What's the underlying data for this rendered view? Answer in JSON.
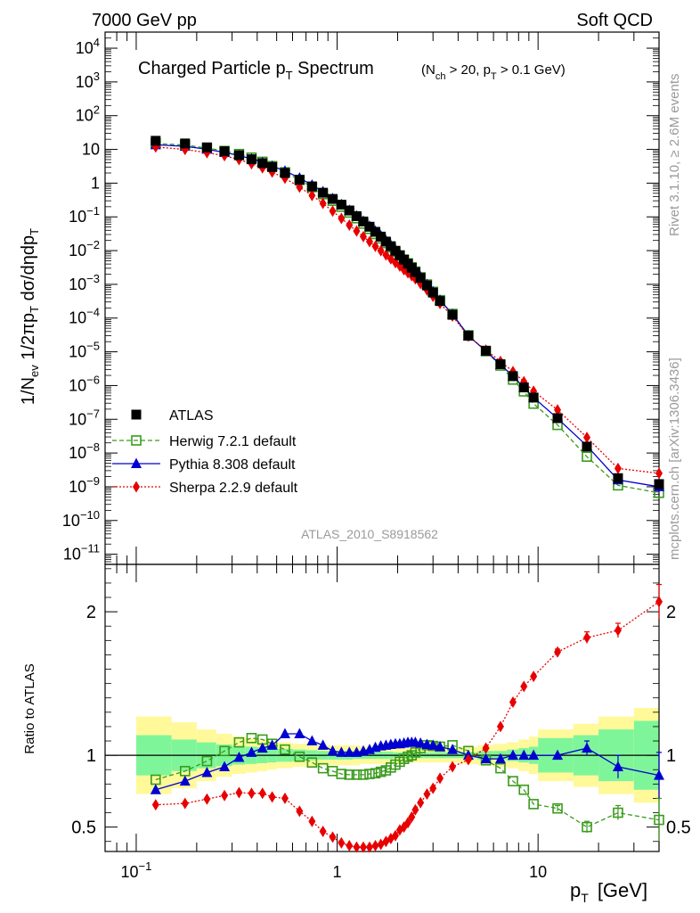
{
  "header": {
    "left": "7000 GeV pp",
    "right": "Soft QCD"
  },
  "side_labels": {
    "top": "Rivet 3.1.10, ≥ 2.6M events",
    "bottom": "mcplots.cern.ch [arXiv:1306.3436]"
  },
  "watermark": "ATLAS_2010_S8918562",
  "colors": {
    "atlas": "#000000",
    "herwig": "#3a9b1c",
    "pythia": "#0000d0",
    "sherpa": "#e80000",
    "band_inner": "#7ff59a",
    "band_outer": "#fff99a"
  },
  "chart_data": [
    {
      "type": "scatter",
      "title_main": "Charged Particle p",
      "title_sub": "T",
      "title_tail": " Spectrum",
      "title_cond": "(N",
      "title_cond_sub1": "ch",
      "title_cond_mid": " > 20, p",
      "title_cond_sub2": "T",
      "title_cond_tail": " > 0.1 GeV)",
      "ylabel": "1/N_ev 1/2πp_T dσ/dηdp_T",
      "x_scale": "log",
      "y_scale": "log",
      "xlim": [
        0.07,
        40
      ],
      "ylim": [
        5e-12,
        30000
      ],
      "y_ticks": [
        {
          "v": 10000.0,
          "b": "10",
          "e": "4"
        },
        {
          "v": 1000.0,
          "b": "10",
          "e": "3"
        },
        {
          "v": 100.0,
          "b": "10",
          "e": "2"
        },
        {
          "v": 10,
          "b": "10",
          "e": ""
        },
        {
          "v": 1,
          "b": "1",
          "e": ""
        },
        {
          "v": 0.1,
          "b": "10",
          "e": "−1"
        },
        {
          "v": 0.01,
          "b": "10",
          "e": "−2"
        },
        {
          "v": 0.001,
          "b": "10",
          "e": "−3"
        },
        {
          "v": 0.0001,
          "b": "10",
          "e": "−4"
        },
        {
          "v": 1e-05,
          "b": "10",
          "e": "−5"
        },
        {
          "v": 1e-06,
          "b": "10",
          "e": "−6"
        },
        {
          "v": 1e-07,
          "b": "10",
          "e": "−7"
        },
        {
          "v": 1e-08,
          "b": "10",
          "e": "−8"
        },
        {
          "v": 1e-09,
          "b": "10",
          "e": "−9"
        },
        {
          "v": 1e-10,
          "b": "10",
          "e": "−10"
        },
        {
          "v": 1e-11,
          "b": "10",
          "e": "−11"
        }
      ],
      "x": [
        0.125,
        0.175,
        0.225,
        0.275,
        0.325,
        0.375,
        0.425,
        0.475,
        0.55,
        0.65,
        0.75,
        0.85,
        0.95,
        1.05,
        1.15,
        1.25,
        1.35,
        1.45,
        1.55,
        1.65,
        1.75,
        1.85,
        1.95,
        2.05,
        2.15,
        2.25,
        2.35,
        2.45,
        2.6,
        2.8,
        3.0,
        3.25,
        3.75,
        4.5,
        5.5,
        6.5,
        7.5,
        8.5,
        9.5,
        12.5,
        17.5,
        25,
        40
      ],
      "series": [
        {
          "name": "ATLAS",
          "values": [
            18,
            15,
            11.5,
            8.8,
            6.7,
            5.1,
            3.9,
            3.0,
            2.0,
            1.25,
            0.8,
            0.52,
            0.34,
            0.23,
            0.155,
            0.105,
            0.073,
            0.051,
            0.036,
            0.026,
            0.0185,
            0.0135,
            0.0099,
            0.0073,
            0.0054,
            0.0041,
            0.0031,
            0.0023,
            0.00155,
            0.00093,
            0.00057,
            0.00032,
            0.000125,
            3e-05,
            1.08e-05,
            4.3e-06,
            1.9e-06,
            8.8e-07,
            4.4e-07,
            1.08e-07,
            1.55e-08,
            1.8e-09,
            1.2e-09
          ]
        },
        {
          "name": "Herwig 7.2.1 default",
          "values": [
            15.0,
            13.4,
            11.0,
            9.0,
            7.3,
            5.7,
            4.3,
            3.2,
            2.1,
            1.25,
            0.76,
            0.47,
            0.3,
            0.2,
            0.134,
            0.091,
            0.063,
            0.044,
            0.031,
            0.023,
            0.0166,
            0.0124,
            0.0093,
            0.0071,
            0.0054,
            0.0042,
            0.0032,
            0.0024,
            0.00162,
            0.00099,
            0.0006,
            0.00034,
            0.000133,
            3.1e-05,
            1.04e-05,
            3.9e-06,
            1.5e-06,
            6.7e-07,
            2.9e-07,
            6.8e-08,
            7.8e-09,
            1.1e-09,
            6.6e-10
          ]
        },
        {
          "name": "Pythia 8.308 default",
          "values": [
            13.7,
            12.3,
            10.1,
            8.1,
            6.6,
            5.2,
            4.1,
            3.2,
            2.3,
            1.43,
            0.88,
            0.56,
            0.35,
            0.235,
            0.158,
            0.107,
            0.075,
            0.053,
            0.038,
            0.0277,
            0.0198,
            0.0145,
            0.0107,
            0.0079,
            0.0059,
            0.0045,
            0.0034,
            0.0025,
            0.00168,
            0.001,
            0.00061,
            0.00034,
            0.00013,
            3e-05,
            1.05e-05,
            4.2e-06,
            1.9e-06,
            8.8e-07,
            4.4e-07,
            1.06e-07,
            1.63e-08,
            1.6e-09,
            1e-09
          ]
        },
        {
          "name": "Sherpa 2.2.9 default",
          "values": [
            11.8,
            10.0,
            8.0,
            6.5,
            5.0,
            3.75,
            2.85,
            2.12,
            1.4,
            0.76,
            0.43,
            0.25,
            0.148,
            0.09,
            0.057,
            0.038,
            0.026,
            0.0185,
            0.0134,
            0.0099,
            0.0074,
            0.0057,
            0.0044,
            0.0035,
            0.0027,
            0.0022,
            0.0018,
            0.00145,
            0.00105,
            0.00068,
            0.00044,
            0.00027,
            0.000115,
            2.9e-05,
            1.13e-05,
            5.2e-06,
            2.6e-06,
            1.3e-06,
            6.8e-07,
            1.9e-07,
            2.9e-08,
            3.5e-09,
            2.5e-09
          ]
        }
      ],
      "legend": "center-left"
    },
    {
      "type": "scatter",
      "ylabel": "Ratio to ATLAS",
      "xlabel_main": "p",
      "xlabel_sub": "T",
      "xlabel_unit": "[GeV]",
      "x_scale": "log",
      "xlim": [
        0.07,
        40
      ],
      "ylim": [
        0.33,
        2.33
      ],
      "y_ticks": [
        "0.5",
        "1",
        "2"
      ],
      "x_ticks": [
        {
          "v": 0.1,
          "b": "10",
          "e": "−1"
        },
        {
          "v": 1,
          "b": "1",
          "e": ""
        },
        {
          "v": 10,
          "b": "10",
          "e": ""
        }
      ],
      "x": [
        0.125,
        0.175,
        0.225,
        0.275,
        0.325,
        0.375,
        0.425,
        0.475,
        0.55,
        0.65,
        0.75,
        0.85,
        0.95,
        1.05,
        1.15,
        1.25,
        1.35,
        1.45,
        1.55,
        1.65,
        1.75,
        1.85,
        1.95,
        2.05,
        2.15,
        2.25,
        2.35,
        2.45,
        2.6,
        2.8,
        3.0,
        3.25,
        3.75,
        4.5,
        5.5,
        6.5,
        7.5,
        8.5,
        9.5,
        12.5,
        17.5,
        25,
        40
      ],
      "bins": [
        [
          0.1,
          0.15
        ],
        [
          0.15,
          0.2
        ],
        [
          0.2,
          0.25
        ],
        [
          0.25,
          0.3
        ],
        [
          0.3,
          0.35
        ],
        [
          0.35,
          0.4
        ],
        [
          0.4,
          0.45
        ],
        [
          0.45,
          0.5
        ],
        [
          0.5,
          0.6
        ],
        [
          0.6,
          0.7
        ],
        [
          0.7,
          0.8
        ],
        [
          0.8,
          0.9
        ],
        [
          0.9,
          1.0
        ],
        [
          1.0,
          1.1
        ],
        [
          1.1,
          1.2
        ],
        [
          1.2,
          1.3
        ],
        [
          1.3,
          1.4
        ],
        [
          1.4,
          1.5
        ],
        [
          1.5,
          1.6
        ],
        [
          1.6,
          1.7
        ],
        [
          1.7,
          1.8
        ],
        [
          1.8,
          1.9
        ],
        [
          1.9,
          2.0
        ],
        [
          2.0,
          2.1
        ],
        [
          2.1,
          2.2
        ],
        [
          2.2,
          2.3
        ],
        [
          2.3,
          2.4
        ],
        [
          2.4,
          2.5
        ],
        [
          2.5,
          2.7
        ],
        [
          2.7,
          2.9
        ],
        [
          2.9,
          3.1
        ],
        [
          3.1,
          3.4
        ],
        [
          3.4,
          4.1
        ],
        [
          4.1,
          5
        ],
        [
          5,
          6
        ],
        [
          6,
          7
        ],
        [
          7,
          8
        ],
        [
          8,
          9
        ],
        [
          9,
          10
        ],
        [
          10,
          15
        ],
        [
          15,
          20
        ],
        [
          20,
          30
        ],
        [
          30,
          40
        ]
      ],
      "band_outer": [
        0.27,
        0.23,
        0.18,
        0.15,
        0.13,
        0.12,
        0.11,
        0.1,
        0.09,
        0.08,
        0.08,
        0.07,
        0.07,
        0.07,
        0.07,
        0.07,
        0.06,
        0.06,
        0.06,
        0.06,
        0.06,
        0.06,
        0.06,
        0.06,
        0.05,
        0.05,
        0.05,
        0.05,
        0.05,
        0.05,
        0.05,
        0.05,
        0.05,
        0.06,
        0.07,
        0.08,
        0.09,
        0.11,
        0.13,
        0.18,
        0.22,
        0.27,
        0.33
      ],
      "band_inner": [
        0.14,
        0.11,
        0.09,
        0.075,
        0.065,
        0.06,
        0.055,
        0.05,
        0.045,
        0.04,
        0.035,
        0.03,
        0.03,
        0.03,
        0.03,
        0.025,
        0.025,
        0.025,
        0.025,
        0.025,
        0.025,
        0.025,
        0.02,
        0.02,
        0.02,
        0.02,
        0.02,
        0.02,
        0.02,
        0.02,
        0.02,
        0.02,
        0.02,
        0.02,
        0.03,
        0.03,
        0.04,
        0.05,
        0.06,
        0.12,
        0.14,
        0.18,
        0.24
      ],
      "series": [
        {
          "name": "Herwig 7.2.1 default",
          "values": [
            0.83,
            0.89,
            0.96,
            1.03,
            1.09,
            1.12,
            1.11,
            1.08,
            1.04,
            0.99,
            0.95,
            0.91,
            0.89,
            0.87,
            0.865,
            0.865,
            0.865,
            0.87,
            0.875,
            0.885,
            0.895,
            0.915,
            0.935,
            0.955,
            0.975,
            0.99,
            1.0,
            1.02,
            1.05,
            1.07,
            1.065,
            1.06,
            1.07,
            1.03,
            0.965,
            0.91,
            0.82,
            0.76,
            0.66,
            0.63,
            0.5,
            0.6,
            0.55
          ],
          "errors": [
            0,
            0,
            0,
            0,
            0,
            0,
            0,
            0,
            0,
            0,
            0,
            0,
            0,
            0,
            0,
            0,
            0,
            0,
            0,
            0,
            0,
            0,
            0,
            0,
            0,
            0,
            0,
            0,
            0,
            0,
            0,
            0,
            0,
            0,
            0,
            0,
            0,
            0,
            0,
            0.02,
            0.04,
            0.05,
            0.15
          ]
        },
        {
          "name": "Pythia 8.308 default",
          "values": [
            0.76,
            0.82,
            0.88,
            0.92,
            0.985,
            1.02,
            1.05,
            1.07,
            1.15,
            1.15,
            1.1,
            1.07,
            1.03,
            1.02,
            1.02,
            1.02,
            1.03,
            1.04,
            1.055,
            1.065,
            1.07,
            1.075,
            1.08,
            1.08,
            1.085,
            1.09,
            1.09,
            1.09,
            1.085,
            1.075,
            1.07,
            1.06,
            1.04,
            1.0,
            0.975,
            0.975,
            1.0,
            1.0,
            1.0,
            1.0,
            1.05,
            0.92,
            0.86
          ],
          "errors": [
            0,
            0,
            0,
            0,
            0,
            0,
            0,
            0,
            0,
            0,
            0,
            0,
            0,
            0,
            0,
            0,
            0,
            0,
            0,
            0,
            0,
            0,
            0,
            0,
            0,
            0,
            0,
            0,
            0,
            0,
            0,
            0,
            0,
            0,
            0,
            0,
            0,
            0,
            0,
            0,
            0.05,
            0.08,
            0.16
          ]
        },
        {
          "name": "Sherpa 2.2.9 default",
          "values": [
            0.655,
            0.665,
            0.695,
            0.72,
            0.74,
            0.735,
            0.735,
            0.71,
            0.7,
            0.61,
            0.54,
            0.47,
            0.43,
            0.39,
            0.37,
            0.36,
            0.36,
            0.36,
            0.37,
            0.38,
            0.4,
            0.42,
            0.44,
            0.48,
            0.5,
            0.53,
            0.57,
            0.62,
            0.67,
            0.73,
            0.77,
            0.84,
            0.92,
            0.97,
            1.05,
            1.2,
            1.37,
            1.48,
            1.55,
            1.72,
            1.82,
            1.87,
            2.07
          ],
          "errors": [
            0,
            0,
            0,
            0,
            0,
            0,
            0,
            0,
            0,
            0,
            0,
            0,
            0,
            0,
            0,
            0,
            0,
            0,
            0,
            0,
            0,
            0,
            0,
            0,
            0,
            0,
            0,
            0,
            0,
            0,
            0,
            0,
            0,
            0,
            0,
            0,
            0,
            0,
            0,
            0.02,
            0.04,
            0.05,
            0.12
          ]
        }
      ]
    }
  ],
  "legend": [
    {
      "label": "ATLAS"
    },
    {
      "label": "Herwig 7.2.1 default"
    },
    {
      "label": "Pythia 8.308 default"
    },
    {
      "label": "Sherpa 2.2.9 default"
    }
  ]
}
